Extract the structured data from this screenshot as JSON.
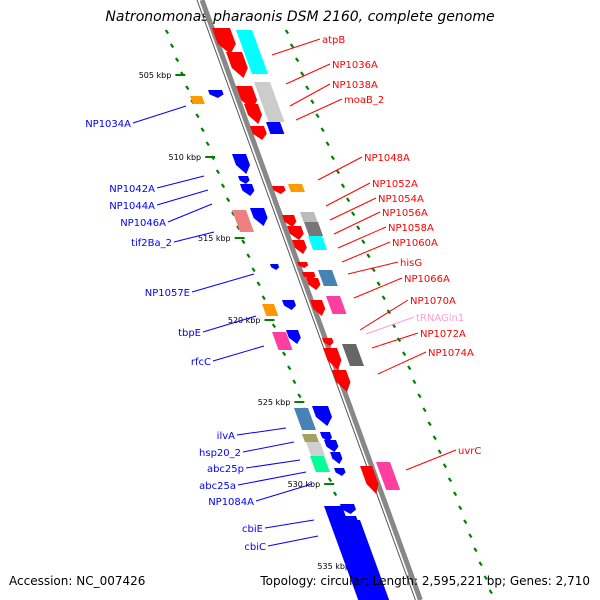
{
  "title": "Natronomonas pharaonis DSM 2160, complete genome",
  "footer": {
    "accession": "Accession: NC_007426",
    "stats": "Topology: circular; Length: 2,595,221 bp; Genes: 2,710"
  },
  "colors": {
    "forward_gene": "#ff0000",
    "reverse_gene": "#0000ff",
    "trna": "#ff9fcf",
    "backbone": "#888888",
    "tick": "#008000",
    "cyan": "#00ffff",
    "pink": "#ff3fa0",
    "gray": "#999999",
    "orange": "#ff9900",
    "steelblue": "#4682b4",
    "green": "#00ff99",
    "olive": "#a8a060",
    "salmon": "#f08080"
  },
  "ticks": [
    "505 kbp",
    "510 kbp",
    "515 kbp",
    "520 kbp",
    "525 kbp",
    "530 kbp",
    "535 kbp"
  ],
  "right_labels": [
    {
      "text": "atpB",
      "kind": "forward"
    },
    {
      "text": "NP1036A",
      "kind": "forward"
    },
    {
      "text": "NP1038A",
      "kind": "forward"
    },
    {
      "text": "moaB_2",
      "kind": "forward"
    },
    {
      "text": "NP1048A",
      "kind": "forward"
    },
    {
      "text": "NP1052A",
      "kind": "forward"
    },
    {
      "text": "NP1054A",
      "kind": "forward"
    },
    {
      "text": "NP1056A",
      "kind": "forward"
    },
    {
      "text": "NP1058A",
      "kind": "forward"
    },
    {
      "text": "NP1060A",
      "kind": "forward"
    },
    {
      "text": "hisG",
      "kind": "forward"
    },
    {
      "text": "NP1066A",
      "kind": "forward"
    },
    {
      "text": "NP1070A",
      "kind": "forward"
    },
    {
      "text": "tRNAGln1",
      "kind": "trna"
    },
    {
      "text": "NP1072A",
      "kind": "forward"
    },
    {
      "text": "NP1074A",
      "kind": "forward"
    },
    {
      "text": "uvrC",
      "kind": "forward"
    }
  ],
  "left_labels": [
    {
      "text": "NP1034A"
    },
    {
      "text": "NP1042A"
    },
    {
      "text": "NP1044A"
    },
    {
      "text": "NP1046A"
    },
    {
      "text": "tif2Ba_2"
    },
    {
      "text": "NP1057E"
    },
    {
      "text": "tbpE"
    },
    {
      "text": "rfcC"
    },
    {
      "text": "ilvA"
    },
    {
      "text": "hsp20_2"
    },
    {
      "text": "abc25p"
    },
    {
      "text": "abc25a"
    },
    {
      "text": "NP1084A"
    },
    {
      "text": "cbiE"
    },
    {
      "text": "cbiC"
    }
  ]
}
